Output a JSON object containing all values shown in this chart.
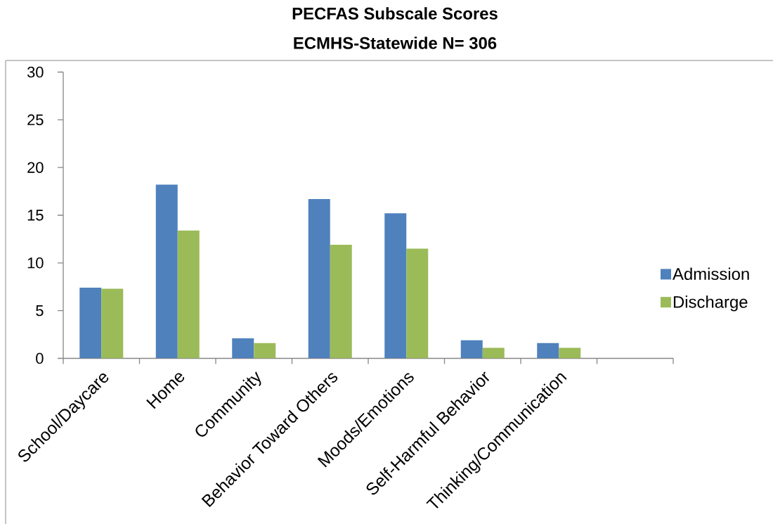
{
  "chart_data": {
    "type": "bar",
    "title": "PECFAS Subscale Scores",
    "subtitle": "ECMHS-Statewide   N= 306",
    "categories": [
      "School/Daycare",
      "Home",
      "Community",
      "Behavior Toward Others",
      "Moods/Emotions",
      "Self-Harmful Behavior",
      "Thinking/Communication",
      null
    ],
    "series": [
      {
        "name": "Admission",
        "color": "#4f81bd",
        "values": [
          7.4,
          18.2,
          2.1,
          16.7,
          15.2,
          1.9,
          1.6,
          null
        ]
      },
      {
        "name": "Discharge",
        "color": "#9bbb59",
        "values": [
          7.3,
          13.4,
          1.6,
          11.9,
          11.5,
          1.1,
          1.1,
          null
        ]
      }
    ],
    "ylim": [
      0,
      30
    ],
    "yticks": [
      0,
      5,
      10,
      15,
      20,
      25,
      30
    ],
    "legend": "right"
  }
}
